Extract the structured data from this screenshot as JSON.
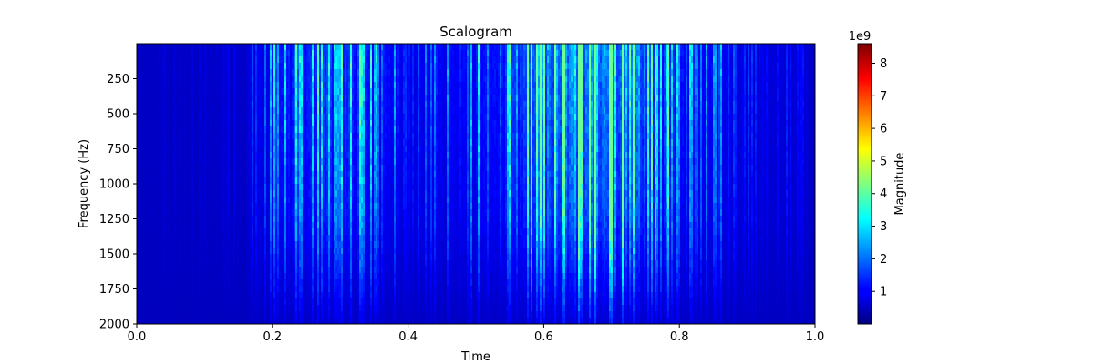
{
  "chart_data": {
    "type": "heatmap",
    "title": "Scalogram",
    "xlabel": "Time",
    "ylabel": "Frequency (Hz)",
    "xlim": [
      0.0,
      1.0
    ],
    "ylim": [
      2000,
      0
    ],
    "x_ticks": [
      "0.0",
      "0.2",
      "0.4",
      "0.6",
      "0.8",
      "1.0"
    ],
    "y_ticks": [
      "250",
      "500",
      "750",
      "1000",
      "1250",
      "1500",
      "1750",
      "2000"
    ],
    "colormap": "jet",
    "colorbar": {
      "label": "Magnitude",
      "exponent_label": "1e9",
      "range": [
        0,
        8.6
      ],
      "ticks": [
        "1",
        "2",
        "3",
        "4",
        "5",
        "6",
        "7",
        "8"
      ]
    },
    "energy_profile": [
      {
        "time": 0.0,
        "level": 0.01
      },
      {
        "time": 0.16,
        "level": 0.02
      },
      {
        "time": 0.17,
        "level": 0.06
      },
      {
        "time": 0.22,
        "level": 0.14
      },
      {
        "time": 0.28,
        "level": 0.17
      },
      {
        "time": 0.33,
        "level": 0.15
      },
      {
        "time": 0.38,
        "level": 0.09
      },
      {
        "time": 0.45,
        "level": 0.08
      },
      {
        "time": 0.52,
        "level": 0.13
      },
      {
        "time": 0.58,
        "level": 0.22
      },
      {
        "time": 0.63,
        "level": 0.32
      },
      {
        "time": 0.68,
        "level": 0.34
      },
      {
        "time": 0.74,
        "level": 0.26
      },
      {
        "time": 0.79,
        "level": 0.16
      },
      {
        "time": 0.84,
        "level": 0.1
      },
      {
        "time": 0.9,
        "level": 0.06
      },
      {
        "time": 1.0,
        "level": 0.03
      }
    ]
  }
}
